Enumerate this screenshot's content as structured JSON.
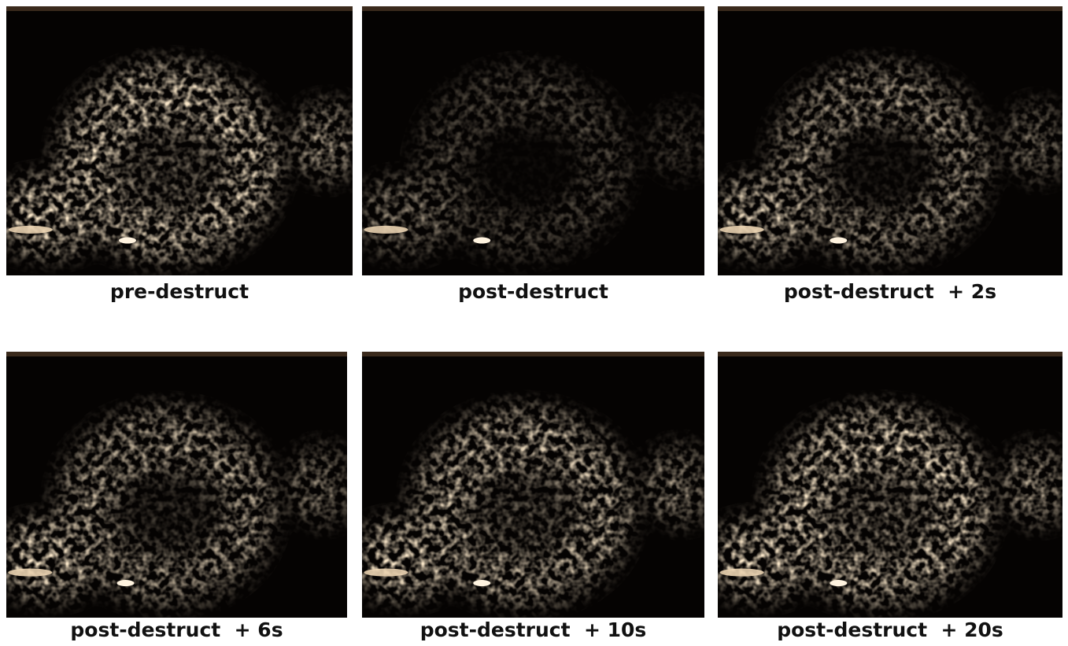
{
  "panels": [
    {
      "label": "pre-destruct"
    },
    {
      "label": "post-destruct"
    },
    {
      "label": "post-destruct  + 2s"
    },
    {
      "label": "post-destruct  + 6s"
    },
    {
      "label": "post-destruct  + 10s"
    },
    {
      "label": "post-destruct  + 20s"
    }
  ]
}
